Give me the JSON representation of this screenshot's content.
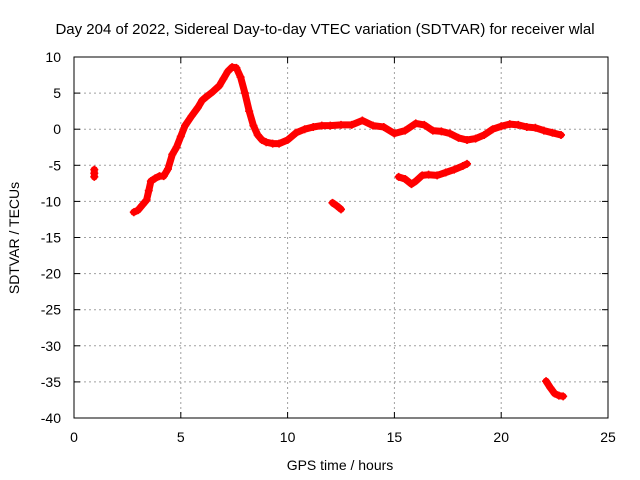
{
  "chart_data": {
    "type": "scatter",
    "title": "Day 204 of 2022, Sidereal Day-to-day VTEC variation (SDTVAR) for receiver wlal",
    "xlabel": "GPS time / hours",
    "ylabel": "SDTVAR / TECUs",
    "xlim": [
      0,
      25
    ],
    "ylim": [
      -40,
      10
    ],
    "xticks": [
      0,
      5,
      10,
      15,
      20,
      25
    ],
    "yticks": [
      10,
      5,
      0,
      -5,
      -10,
      -15,
      -20,
      -25,
      -30,
      -35,
      -40
    ],
    "grid": true,
    "series_color": "#ff0000",
    "segments": [
      {
        "name": "isolated-early",
        "points": [
          [
            0.95,
            -5.6
          ],
          [
            0.95,
            -6.1
          ],
          [
            0.95,
            -6.6
          ]
        ]
      },
      {
        "name": "main-trace",
        "points": [
          [
            2.8,
            -11.5
          ],
          [
            3.0,
            -11.2
          ],
          [
            3.2,
            -10.5
          ],
          [
            3.4,
            -9.8
          ],
          [
            3.5,
            -8.5
          ],
          [
            3.6,
            -7.2
          ],
          [
            3.8,
            -6.8
          ],
          [
            4.0,
            -6.5
          ],
          [
            4.2,
            -6.5
          ],
          [
            4.4,
            -5.5
          ],
          [
            4.6,
            -3.5
          ],
          [
            4.8,
            -2.5
          ],
          [
            5.0,
            -1.0
          ],
          [
            5.2,
            0.5
          ],
          [
            5.5,
            1.8
          ],
          [
            5.8,
            3.0
          ],
          [
            6.0,
            4.0
          ],
          [
            6.2,
            4.5
          ],
          [
            6.5,
            5.2
          ],
          [
            6.8,
            6.0
          ],
          [
            7.0,
            7.0
          ],
          [
            7.2,
            8.0
          ],
          [
            7.4,
            8.6
          ],
          [
            7.6,
            8.5
          ],
          [
            7.8,
            7.2
          ],
          [
            8.0,
            5.0
          ],
          [
            8.2,
            2.5
          ],
          [
            8.4,
            0.5
          ],
          [
            8.6,
            -0.8
          ],
          [
            8.8,
            -1.5
          ],
          [
            9.0,
            -1.8
          ],
          [
            9.3,
            -2.0
          ],
          [
            9.6,
            -2.0
          ],
          [
            10.0,
            -1.5
          ],
          [
            10.4,
            -0.5
          ],
          [
            10.8,
            0.0
          ],
          [
            11.2,
            0.3
          ],
          [
            11.6,
            0.5
          ],
          [
            12.0,
            0.5
          ],
          [
            12.5,
            0.6
          ],
          [
            13.0,
            0.6
          ],
          [
            13.5,
            1.2
          ],
          [
            14.0,
            0.5
          ],
          [
            14.5,
            0.3
          ],
          [
            15.0,
            -0.6
          ],
          [
            15.5,
            -0.2
          ],
          [
            16.0,
            0.8
          ],
          [
            16.4,
            0.6
          ],
          [
            16.8,
            -0.2
          ],
          [
            17.2,
            -0.3
          ],
          [
            17.6,
            -0.6
          ],
          [
            18.0,
            -1.2
          ],
          [
            18.4,
            -1.5
          ],
          [
            18.8,
            -1.3
          ],
          [
            19.2,
            -0.8
          ],
          [
            19.6,
            0.0
          ],
          [
            20.0,
            0.4
          ],
          [
            20.4,
            0.7
          ],
          [
            20.8,
            0.6
          ],
          [
            21.2,
            0.3
          ],
          [
            21.6,
            0.2
          ],
          [
            22.0,
            -0.2
          ],
          [
            22.4,
            -0.5
          ],
          [
            22.8,
            -0.8
          ]
        ]
      },
      {
        "name": "isolated-midday",
        "points": [
          [
            12.1,
            -10.2
          ],
          [
            12.3,
            -10.6
          ],
          [
            12.5,
            -11.1
          ]
        ]
      },
      {
        "name": "afternoon-segment",
        "points": [
          [
            15.2,
            -6.6
          ],
          [
            15.5,
            -6.9
          ],
          [
            15.8,
            -7.6
          ],
          [
            16.0,
            -7.2
          ],
          [
            16.3,
            -6.4
          ],
          [
            16.6,
            -6.3
          ],
          [
            17.0,
            -6.4
          ],
          [
            17.4,
            -6.0
          ],
          [
            17.8,
            -5.6
          ],
          [
            18.2,
            -5.1
          ],
          [
            18.4,
            -4.8
          ]
        ]
      },
      {
        "name": "late-drop",
        "points": [
          [
            22.1,
            -34.9
          ],
          [
            22.3,
            -35.8
          ],
          [
            22.5,
            -36.6
          ],
          [
            22.7,
            -36.9
          ],
          [
            22.9,
            -37.0
          ]
        ]
      }
    ]
  }
}
